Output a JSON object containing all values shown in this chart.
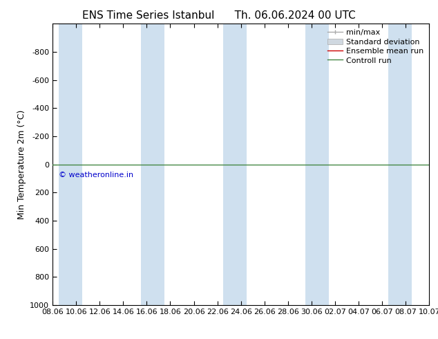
{
  "title_left": "ENS Time Series Istanbul",
  "title_right": "Th. 06.06.2024 00 UTC",
  "ylabel": "Min Temperature 2m (°C)",
  "ylim": [
    -1000,
    1000
  ],
  "yticks": [
    -800,
    -600,
    -400,
    -200,
    0,
    200,
    400,
    600,
    800,
    1000
  ],
  "xlim": [
    0,
    32
  ],
  "xtick_labels": [
    "08.06",
    "10.06",
    "12.06",
    "14.06",
    "16.06",
    "18.06",
    "20.06",
    "22.06",
    "24.06",
    "26.06",
    "28.06",
    "30.06",
    "02.07",
    "04.07",
    "06.07",
    "08.07",
    "10.07"
  ],
  "xtick_positions": [
    0,
    2,
    4,
    6,
    8,
    10,
    12,
    14,
    16,
    18,
    20,
    22,
    24,
    26,
    28,
    30,
    32
  ],
  "blue_bands": [
    [
      0.5,
      2.5
    ],
    [
      7.5,
      9.5
    ],
    [
      14.5,
      16.5
    ],
    [
      21.5,
      23.5
    ],
    [
      28.5,
      30.5
    ]
  ],
  "blue_band_color": "#cfe0ef",
  "green_line_y": 0,
  "green_line_color": "#448844",
  "ensemble_mean_color": "#cc0000",
  "watermark": "© weatheronline.in",
  "watermark_color": "#0000cc",
  "bg_color": "#ffffff",
  "legend_entries": [
    "min/max",
    "Standard deviation",
    "Ensemble mean run",
    "Controll run"
  ],
  "title_fontsize": 11,
  "axis_label_fontsize": 9,
  "tick_fontsize": 8,
  "legend_fontsize": 8
}
